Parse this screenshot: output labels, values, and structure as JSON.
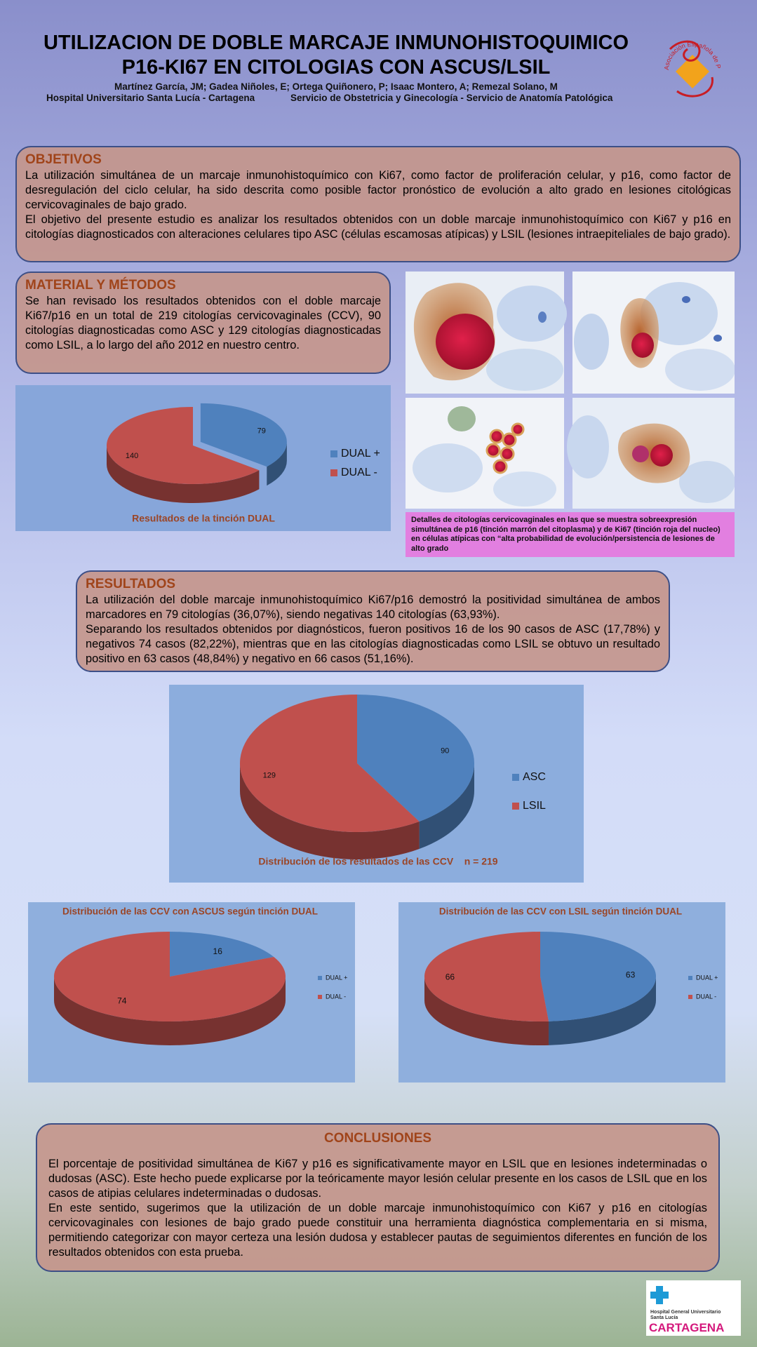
{
  "header": {
    "title_lines": [
      "UTILIZACION DE DOBLE MARCAJE INMUNOHISTOQUIMICO",
      "P16-KI67 EN CITOLOGIAS CON ASCUS/LSIL"
    ],
    "authors": "Martínez García, JM; Gadea Niñoles, E; Ortega Quiñonero, P; Isaac Montero, A; Remezal Solano, M",
    "hospital": "Hospital Universitario Santa Lucía - Cartagena",
    "service": "Servicio de Obstetricia y Ginecología - Servicio de Anatomía Patológica",
    "logo_text": "Asociación Española de Patología Cervical y Colposcopia"
  },
  "sections": {
    "objetivos": {
      "heading": "OBJETIVOS",
      "paragraphs": [
        "La utilización simultánea de un marcaje inmunohistoquímico con Ki67, como factor de proliferación celular, y p16, como factor de desregulación del ciclo celular, ha sido descrita como posible factor pronóstico de evolución a alto grado en lesiones citológicas cervicovaginales de bajo grado.",
        "El objetivo del presente estudio es analizar los resultados obtenidos con un doble marcaje inmunohistoquímico con Ki67 y p16 en citologías diagnosticados con alteraciones celulares tipo ASC (células escamosas atípicas) y LSIL (lesiones intraepiteliales de bajo grado)."
      ]
    },
    "material": {
      "heading": "MATERIAL Y MÉTODOS",
      "paragraphs": [
        "Se han revisado los resultados obtenidos con el doble marcaje Ki67/p16 en un total de 219 citologías cervicovaginales (CCV), 90 citologías diagnosticadas como ASC y 129 citologías diagnosticadas como LSIL, a lo largo del año 2012 en nuestro centro."
      ]
    },
    "resultados": {
      "heading": "RESULTADOS",
      "paragraphs": [
        "La utilización del doble marcaje inmunohistoquímico Ki67/p16 demostró la positividad simultánea de ambos marcadores en 79 citologías (36,07%), siendo negativas 140 citologías (63,93%).",
        "Separando los resultados obtenidos por diagnósticos, fueron positivos 16 de los 90 casos de ASC (17,78%) y negativos 74 casos (82,22%), mientras que en las citologías diagnosticadas como LSIL se obtuvo un resultado positivo en 63 casos (48,84%) y negativo en 66 casos (51,16%)."
      ]
    },
    "conclusiones": {
      "heading": "CONCLUSIONES",
      "paragraphs": [
        "El porcentaje de positividad simultánea de Ki67 y p16 es significativamente mayor en LSIL que en lesiones indeterminadas o dudosas (ASC). Este hecho puede explicarse por la teóricamente mayor lesión celular presente en los casos de LSIL que en los casos de atipias celulares indeterminadas o dudosas.",
        "En este sentido, sugerimos que la utilización de un doble marcaje inmunohistoquímico con Ki67 y p16 en citologías cervicovaginales con lesiones de bajo grado puede constituir una herramienta diagnóstica complementaria en si misma, permitiendo categorizar con mayor certeza una lesión dudosa y establecer pautas de seguimientos diferentes en función de los resultados obtenidos con esta prueba."
      ]
    }
  },
  "photo_caption": "Detalles de citologías cervicovaginales en las que se muestra sobreexpresión simultánea de  p16  (tinción marrón del citoplasma) y de Ki67 (tinción roja del nucleo) en células atípicas con “alta probabilidad de evolución/persistencia de lesiones de alto grado",
  "chart_data": [
    {
      "type": "pie",
      "title": "Resultados de la tinción DUAL",
      "title_position": "bottom",
      "categories": [
        "DUAL +",
        "DUAL -"
      ],
      "values": [
        79,
        140
      ],
      "colors": [
        "#4f81bd",
        "#c0504d"
      ],
      "legend": "right",
      "explode": [
        true,
        false
      ]
    },
    {
      "type": "pie",
      "title": "Distribución de los resultados de las CCV    n = 219",
      "title_position": "bottom",
      "categories": [
        "ASC",
        "LSIL"
      ],
      "values": [
        90,
        129
      ],
      "colors": [
        "#4f81bd",
        "#c0504d"
      ],
      "legend": "right",
      "explode": [
        false,
        false
      ]
    },
    {
      "type": "pie",
      "title": "Distribución de las CCV con ASCUS según tinción DUAL",
      "title_position": "top",
      "categories": [
        "DUAL +",
        "DUAL -"
      ],
      "values": [
        16,
        74
      ],
      "colors": [
        "#4f81bd",
        "#c0504d"
      ],
      "legend": "right",
      "explode": [
        false,
        false
      ]
    },
    {
      "type": "pie",
      "title": "Distribución de las CCV con LSIL según tinción DUAL",
      "title_position": "top",
      "categories": [
        "DUAL +",
        "DUAL -"
      ],
      "values": [
        63,
        66
      ],
      "colors": [
        "#4f81bd",
        "#c0504d"
      ],
      "legend": "right",
      "explode": [
        false,
        false
      ]
    }
  ],
  "footer": {
    "logo_line1": "Hospital General Universitario",
    "logo_line2": "Santa Lucía",
    "logo_city": "CARTAGENA"
  }
}
